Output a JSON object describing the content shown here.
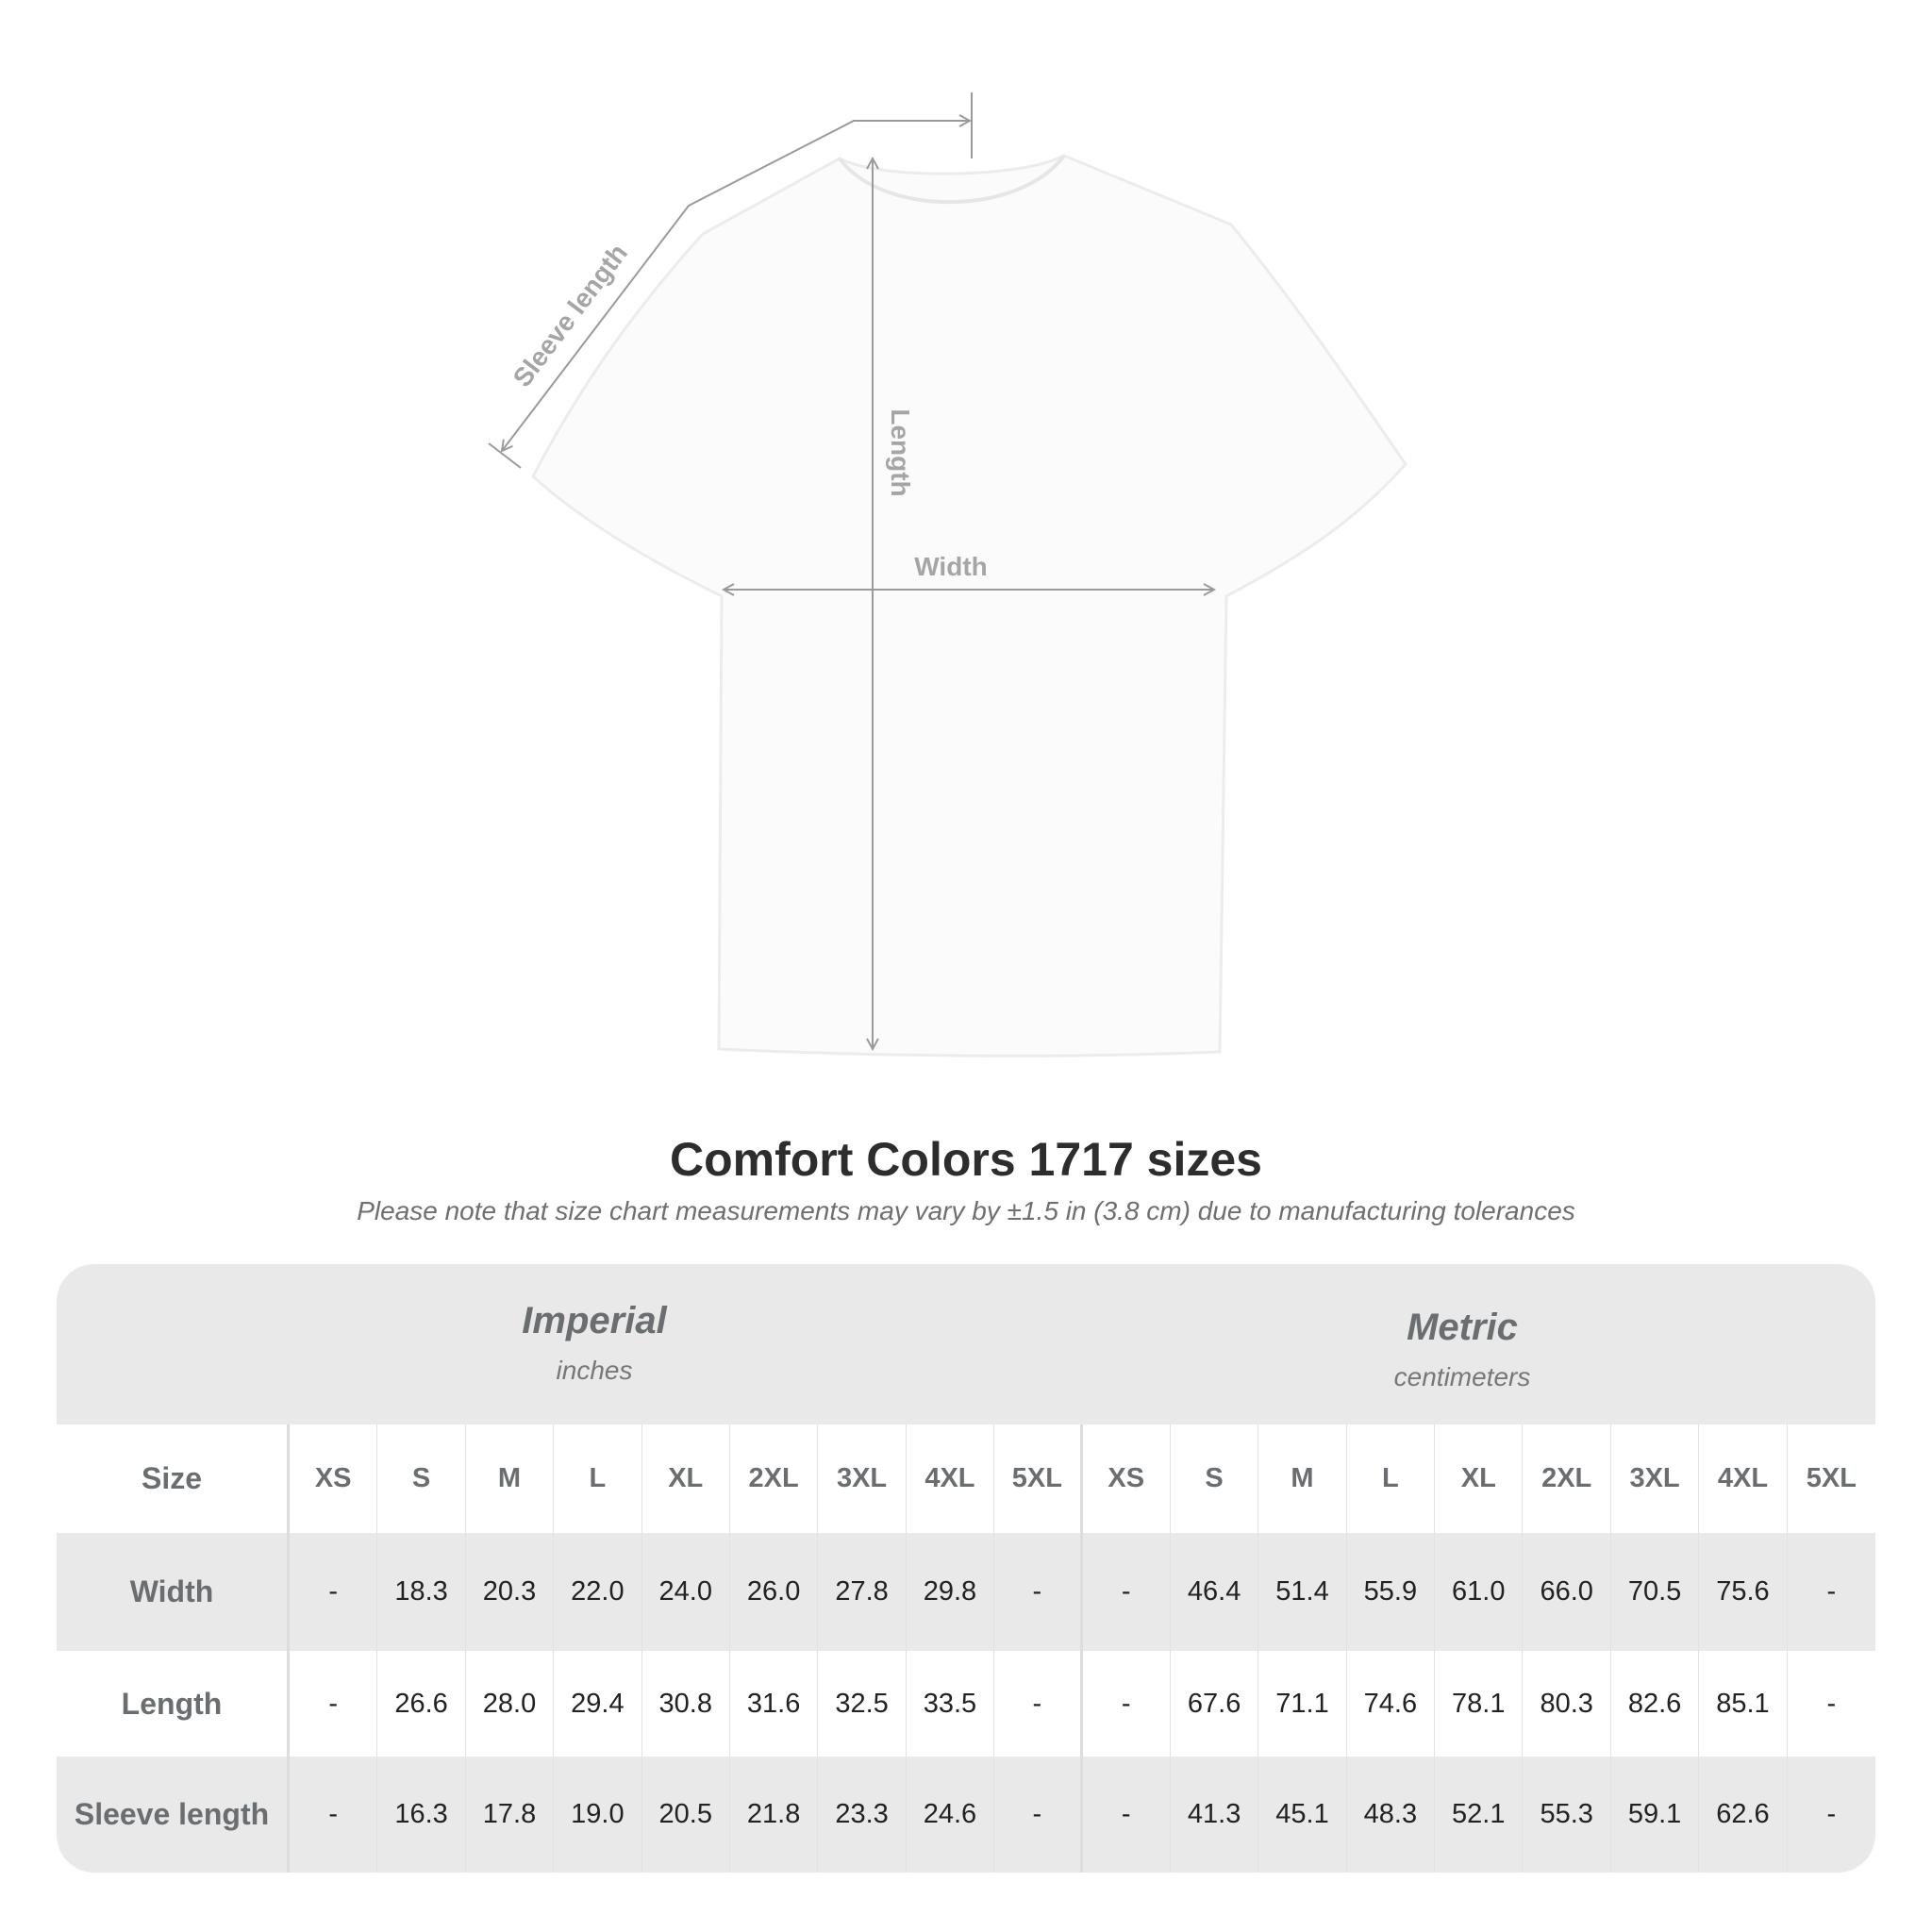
{
  "diagram": {
    "labels": {
      "sleeve": "Sleeve length",
      "length": "Length",
      "width": "Width"
    }
  },
  "title": "Comfort Colors 1717 sizes",
  "subtitle": "Please note that size chart measurements may vary by ±1.5 in (3.8 cm) due to manufacturing tolerances",
  "table": {
    "imperial": {
      "name": "Imperial",
      "unit": "inches"
    },
    "metric": {
      "name": "Metric",
      "unit": "centimeters"
    },
    "size_label": "Size",
    "sizes": [
      "XS",
      "S",
      "M",
      "L",
      "XL",
      "2XL",
      "3XL",
      "4XL",
      "5XL"
    ],
    "rows": [
      {
        "label": "Width",
        "imperial": [
          "-",
          "18.3",
          "20.3",
          "22.0",
          "24.0",
          "26.0",
          "27.8",
          "29.8",
          "-"
        ],
        "metric": [
          "-",
          "46.4",
          "51.4",
          "55.9",
          "61.0",
          "66.0",
          "70.5",
          "75.6",
          "-"
        ]
      },
      {
        "label": "Length",
        "imperial": [
          "-",
          "26.6",
          "28.0",
          "29.4",
          "30.8",
          "31.6",
          "32.5",
          "33.5",
          "-"
        ],
        "metric": [
          "-",
          "67.6",
          "71.1",
          "74.6",
          "78.1",
          "80.3",
          "82.6",
          "85.1",
          "-"
        ]
      },
      {
        "label": "Sleeve length",
        "imperial": [
          "-",
          "16.3",
          "17.8",
          "19.0",
          "20.5",
          "21.8",
          "23.3",
          "24.6",
          "-"
        ],
        "metric": [
          "-",
          "41.3",
          "45.1",
          "48.3",
          "52.1",
          "55.3",
          "59.1",
          "62.6",
          "-"
        ]
      }
    ]
  },
  "colors": {
    "band": "#e9e9e9",
    "header_text": "#6a6e70",
    "dimension_line": "#9a9a9a"
  }
}
